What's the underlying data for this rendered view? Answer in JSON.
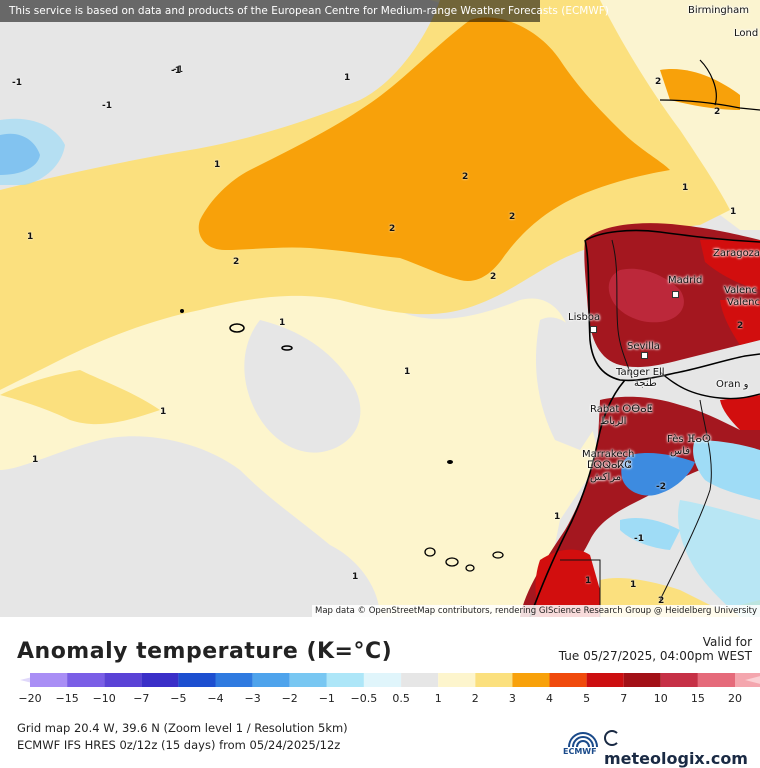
{
  "header": {
    "notice": "This service is based on data and products of the European Centre for Medium-range Weather Forecasts (ECMWF)"
  },
  "map": {
    "attribution": "Map data © OpenStreetMap contributors, rendering GIScience Research Group @ Heidelberg University",
    "cities": [
      {
        "name": "Birmingham"
      },
      {
        "name": "Lond"
      },
      {
        "name": "Zaragoza"
      },
      {
        "name": "Madrid"
      },
      {
        "name": "Valenc"
      },
      {
        "name": "Valenc"
      },
      {
        "name": "Lisboa"
      },
      {
        "name": "Sevilla"
      },
      {
        "name": "Tanger Ell"
      },
      {
        "name": "طنجة"
      },
      {
        "name": "Oran و"
      },
      {
        "name": "Rabat ⵔⴱⴰⵟ"
      },
      {
        "name": "الرباط"
      },
      {
        "name": "Fès ⴼⴰⵙ"
      },
      {
        "name": "فاس"
      },
      {
        "name": "Marrakech"
      },
      {
        "name": "ⵎⵕⵕⴰⴽⵛ"
      },
      {
        "name": "مراكش"
      }
    ],
    "contour_labels": [
      "-1",
      "-1",
      "-1",
      "-1",
      "1",
      "1",
      "1",
      "1",
      "1",
      "1",
      "1",
      "1",
      "1",
      "1",
      "1",
      "2",
      "2",
      "2",
      "2",
      "2",
      "2",
      "2",
      "2",
      "-2",
      "-1",
      "1",
      "1",
      "2"
    ],
    "colors": {
      "sea_neutral": "#e6e6e6",
      "pale_yellow": "#fdf5cd",
      "yellow": "#fbe07e",
      "orange": "#f8a10a",
      "dark_red": "#a4171f",
      "red": "#d20e0e",
      "blue": "#3d8be0",
      "light_blue": "#9fdcf6"
    }
  },
  "panel": {
    "title": "Anomaly temperature (K=°C)",
    "valid_label": "Valid for",
    "valid_time": "Tue 05/27/2025, 04:00pm WEST",
    "grid_info": "Grid map 20.4 W, 39.6 N (Zoom level 1 / Resolution 5km)",
    "run_info": "ECMWF IFS HRES 0z/12z (15 days) from  05/24/2025/12z",
    "ecmwf_label": "ECMWF",
    "brand": "meteologix.com"
  },
  "legend": {
    "ticks": [
      "−20",
      "−15",
      "−10",
      "−7",
      "−5",
      "−4",
      "−3",
      "−2",
      "−1",
      "−0.5",
      "0.5",
      "1",
      "2",
      "3",
      "4",
      "5",
      "7",
      "10",
      "15",
      "20"
    ],
    "colors": [
      "#a98ef5",
      "#7a5ee6",
      "#5a42d6",
      "#3a2fc8",
      "#1d4fd0",
      "#2f7ae0",
      "#4ea3ec",
      "#78c7f2",
      "#ade6f8",
      "#e0f5fb",
      "#e6e6e6",
      "#fdf5cd",
      "#fbe07e",
      "#f8a10a",
      "#f04a0c",
      "#cc0e10",
      "#a21016",
      "#c63046",
      "#e56a7a",
      "#f4a6ae"
    ]
  }
}
